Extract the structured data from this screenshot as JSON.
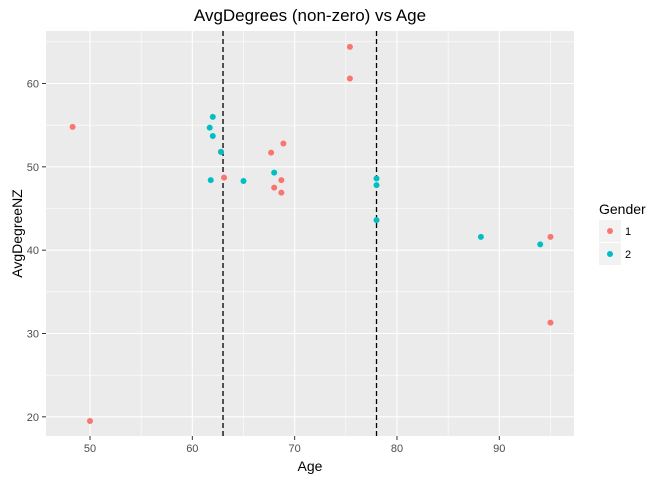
{
  "chart_data": {
    "type": "scatter",
    "title": "AvgDegrees (non-zero) vs Age",
    "xlabel": "Age",
    "ylabel": "AvgDegreeNZ",
    "xlim": [
      45.7,
      97.3
    ],
    "ylim": [
      17.7,
      66.3
    ],
    "x_ticks": [
      50,
      60,
      70,
      80,
      90
    ],
    "y_ticks": [
      20,
      30,
      40,
      50,
      60
    ],
    "grid": true,
    "vlines": [
      63,
      78
    ],
    "legend": {
      "title": "Gender",
      "placement": "right",
      "entries": [
        {
          "label": "1",
          "color": "#F8766D"
        },
        {
          "label": "2",
          "color": "#00BFC4"
        }
      ]
    },
    "series": [
      {
        "name": "1",
        "color": "#F8766D",
        "points": [
          [
            48.3,
            54.8
          ],
          [
            50.0,
            19.5
          ],
          [
            62.8,
            51.8
          ],
          [
            63.1,
            48.7
          ],
          [
            67.7,
            51.7
          ],
          [
            68.0,
            47.5
          ],
          [
            68.7,
            48.4
          ],
          [
            68.7,
            46.9
          ],
          [
            68.9,
            52.8
          ],
          [
            75.4,
            64.4
          ],
          [
            75.4,
            60.6
          ],
          [
            95.0,
            41.6
          ],
          [
            95.0,
            31.3
          ]
        ]
      },
      {
        "name": "2",
        "color": "#00BFC4",
        "points": [
          [
            61.7,
            54.7
          ],
          [
            61.8,
            48.4
          ],
          [
            62.0,
            56.0
          ],
          [
            62.0,
            53.7
          ],
          [
            62.8,
            51.8
          ],
          [
            65.0,
            48.3
          ],
          [
            68.0,
            49.3
          ],
          [
            78.0,
            48.6
          ],
          [
            78.0,
            47.8
          ],
          [
            78.0,
            43.6
          ],
          [
            88.2,
            41.6
          ],
          [
            94.0,
            40.7
          ]
        ]
      }
    ]
  }
}
